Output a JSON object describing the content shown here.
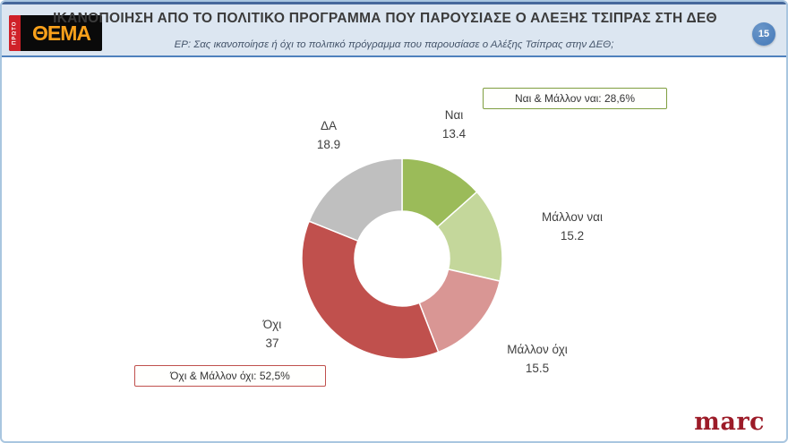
{
  "header": {
    "title": "ΙΚΑΝΟΠΟΙΗΣΗ ΑΠΟ ΤΟ ΠΟΛΙΤΙΚΟ ΠΡΟΓΡΑΜΜΑ ΠΟΥ ΠΑΡΟΥΣΙΑΣΕ Ο ΑΛΕΞΗΣ ΤΣΙΠΡΑΣ ΣΤΗ ΔΕΘ",
    "subtitle": "ΕΡ: Σας ικανοποίησε ή όχι το πολιτικό πρόγραμμα που παρουσίασε ο Αλέξης Τσίπρας στην ΔΕΘ;",
    "page_number": "15",
    "logo": {
      "brand_side": "ΠΡΩΤΟ",
      "brand_main": "ΘΕΜΑ"
    }
  },
  "chart_data": {
    "type": "pie",
    "variant": "donut",
    "title": "Ικανοποίηση από το πολιτικό πρόγραμμα που παρουσίασε ο Αλέξης Τσίπρας στη ΔΕΘ",
    "start_angle_deg": 0,
    "direction": "clockwise",
    "total": 100,
    "segments": [
      {
        "label": "Ναι",
        "value": 13.4,
        "color": "#9bbb59"
      },
      {
        "label": "Μάλλον ναι",
        "value": 15.2,
        "color": "#c4d79b"
      },
      {
        "label": "Μάλλον όχι",
        "value": 15.5,
        "color": "#d99694"
      },
      {
        "label": "Όχι",
        "value": 37,
        "color": "#c0504d"
      },
      {
        "label": "ΔΑ",
        "value": 18.9,
        "color": "#bfbfbf"
      }
    ],
    "annotations": [
      {
        "text": "Ναι & Μάλλον ναι: 28,6%",
        "color": "#7f9e3f"
      },
      {
        "text": "Όχι & Μάλλον όχι: 52,5%",
        "color": "#c0504d"
      }
    ]
  },
  "footer": {
    "agency_logo": "marc"
  }
}
